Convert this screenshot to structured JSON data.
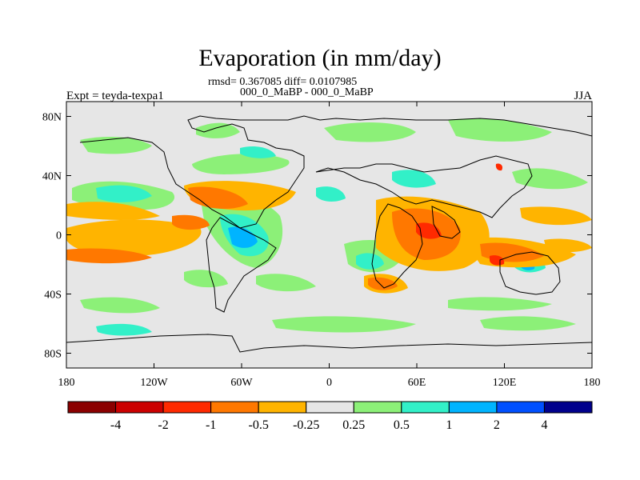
{
  "title": "Evaporation (in mm/day)",
  "stats_line": "rmsd= 0.367085 diff= 0.0107985",
  "comparison_line": "000_0_MaBP - 000_0_MaBP",
  "experiment_label": "Expt = teyda-texpa1",
  "season_label": "JJA",
  "map": {
    "projection": "cylindrical-equidistant",
    "lon_range": [
      -180,
      180
    ],
    "lat_range": [
      -90,
      90
    ],
    "x_ticks": [
      {
        "value": -180,
        "label": "180"
      },
      {
        "value": -120,
        "label": "120W"
      },
      {
        "value": -60,
        "label": "60W"
      },
      {
        "value": 0,
        "label": "0"
      },
      {
        "value": 60,
        "label": "60E"
      },
      {
        "value": 120,
        "label": "120E"
      },
      {
        "value": 180,
        "label": "180"
      }
    ],
    "y_ticks": [
      {
        "value": 80,
        "label": "80N"
      },
      {
        "value": 40,
        "label": "40N"
      },
      {
        "value": 0,
        "label": "0"
      },
      {
        "value": -40,
        "label": "40S"
      },
      {
        "value": -80,
        "label": "80S"
      }
    ],
    "background_color": "#e6e6e6",
    "coastline_color": "#000000"
  },
  "colorbar": {
    "colors": [
      "#8b0000",
      "#cc0000",
      "#ff2a00",
      "#ff7800",
      "#ffb400",
      "#e6e6e6",
      "#8cf078",
      "#32f0c8",
      "#00b4ff",
      "#0050ff",
      "#00008c"
    ],
    "labels": [
      "-4",
      "-2",
      "-1",
      "-0.5",
      "-0.25",
      "0.25",
      "0.5",
      "1",
      "2",
      "4"
    ]
  }
}
